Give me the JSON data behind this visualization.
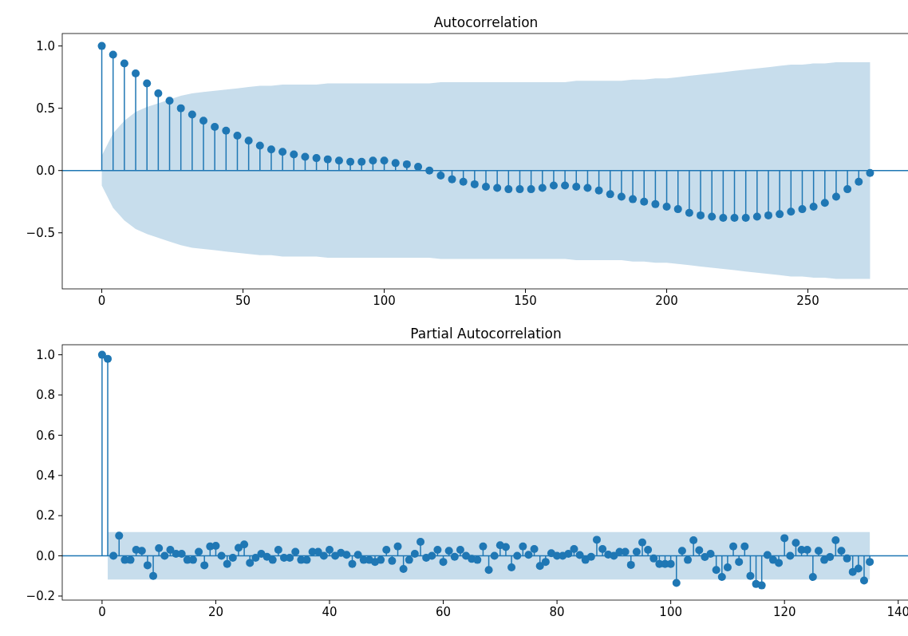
{
  "chart_data": [
    {
      "type": "lollipop",
      "title": "Autocorrelation",
      "xlim": [
        -14,
        286
      ],
      "ylim": [
        -0.95,
        1.1
      ],
      "xticks": [
        0,
        50,
        100,
        150,
        200,
        250
      ],
      "yticks": [
        {
          "value": -0.5,
          "label": "−0.5"
        },
        {
          "value": 0,
          "label": "0.0"
        },
        {
          "value": 0.5,
          "label": "0.5"
        },
        {
          "value": 1,
          "label": "1.0"
        }
      ],
      "marker": "circle",
      "ref_lines": [
        {
          "axis": "y",
          "value": 0,
          "color": "#1f77b4"
        }
      ],
      "series": [
        {
          "color": "#1f77b4",
          "x": [
            0,
            4,
            8,
            12,
            16,
            20,
            24,
            28,
            32,
            36,
            40,
            44,
            48,
            52,
            56,
            60,
            64,
            68,
            72,
            76,
            80,
            84,
            88,
            92,
            96,
            100,
            104,
            108,
            112,
            116,
            120,
            124,
            128,
            132,
            136,
            140,
            144,
            148,
            152,
            156,
            160,
            164,
            168,
            172,
            176,
            180,
            184,
            188,
            192,
            196,
            200,
            204,
            208,
            212,
            216,
            220,
            224,
            228,
            232,
            236,
            240,
            244,
            248,
            252,
            256,
            260,
            264,
            268,
            272
          ],
          "values": [
            1.0,
            0.93,
            0.86,
            0.78,
            0.7,
            0.62,
            0.56,
            0.5,
            0.45,
            0.4,
            0.35,
            0.32,
            0.28,
            0.24,
            0.2,
            0.17,
            0.15,
            0.13,
            0.11,
            0.1,
            0.09,
            0.08,
            0.07,
            0.07,
            0.08,
            0.08,
            0.06,
            0.05,
            0.03,
            0.0,
            -0.04,
            -0.07,
            -0.09,
            -0.11,
            -0.13,
            -0.14,
            -0.15,
            -0.15,
            -0.15,
            -0.14,
            -0.12,
            -0.12,
            -0.13,
            -0.14,
            -0.16,
            -0.19,
            -0.21,
            -0.23,
            -0.25,
            -0.27,
            -0.29,
            -0.31,
            -0.34,
            -0.36,
            -0.37,
            -0.38,
            -0.38,
            -0.38,
            -0.37,
            -0.36,
            -0.35,
            -0.33,
            -0.31,
            -0.29,
            -0.26,
            -0.21,
            -0.15,
            -0.09,
            -0.02
          ],
          "upper": [
            0.12,
            0.3,
            0.4,
            0.47,
            0.51,
            0.54,
            0.57,
            0.6,
            0.62,
            0.63,
            0.64,
            0.65,
            0.66,
            0.67,
            0.68,
            0.68,
            0.69,
            0.69,
            0.69,
            0.69,
            0.7,
            0.7,
            0.7,
            0.7,
            0.7,
            0.7,
            0.7,
            0.7,
            0.7,
            0.7,
            0.71,
            0.71,
            0.71,
            0.71,
            0.71,
            0.71,
            0.71,
            0.71,
            0.71,
            0.71,
            0.71,
            0.71,
            0.72,
            0.72,
            0.72,
            0.72,
            0.72,
            0.73,
            0.73,
            0.74,
            0.74,
            0.75,
            0.76,
            0.77,
            0.78,
            0.79,
            0.8,
            0.81,
            0.82,
            0.83,
            0.84,
            0.85,
            0.85,
            0.86,
            0.86,
            0.87,
            0.87,
            0.87,
            0.87
          ],
          "lower": [
            -0.12,
            -0.3,
            -0.4,
            -0.47,
            -0.51,
            -0.54,
            -0.57,
            -0.6,
            -0.62,
            -0.63,
            -0.64,
            -0.65,
            -0.66,
            -0.67,
            -0.68,
            -0.68,
            -0.69,
            -0.69,
            -0.69,
            -0.69,
            -0.7,
            -0.7,
            -0.7,
            -0.7,
            -0.7,
            -0.7,
            -0.7,
            -0.7,
            -0.7,
            -0.7,
            -0.71,
            -0.71,
            -0.71,
            -0.71,
            -0.71,
            -0.71,
            -0.71,
            -0.71,
            -0.71,
            -0.71,
            -0.71,
            -0.71,
            -0.72,
            -0.72,
            -0.72,
            -0.72,
            -0.72,
            -0.73,
            -0.73,
            -0.74,
            -0.74,
            -0.75,
            -0.76,
            -0.77,
            -0.78,
            -0.79,
            -0.8,
            -0.81,
            -0.82,
            -0.83,
            -0.84,
            -0.85,
            -0.85,
            -0.86,
            -0.86,
            -0.87,
            -0.87,
            -0.87,
            -0.87
          ]
        }
      ]
    },
    {
      "type": "lollipop",
      "title": "Partial Autocorrelation",
      "xlim": [
        -7,
        142
      ],
      "ylim": [
        -0.22,
        1.05
      ],
      "xticks": [
        0,
        20,
        40,
        60,
        80,
        100,
        120,
        140
      ],
      "yticks": [
        {
          "value": -0.2,
          "label": "−0.2"
        },
        {
          "value": 0,
          "label": "0.0"
        },
        {
          "value": 0.2,
          "label": "0.2"
        },
        {
          "value": 0.4,
          "label": "0.4"
        },
        {
          "value": 0.6,
          "label": "0.6"
        },
        {
          "value": 0.8,
          "label": "0.8"
        },
        {
          "value": 1,
          "label": "1.0"
        }
      ],
      "marker": "circle",
      "ref_lines": [
        {
          "axis": "y",
          "value": 0,
          "color": "#1f77b4"
        }
      ],
      "series": [
        {
          "color": "#1f77b4",
          "x": [
            0,
            1,
            2,
            3,
            4,
            5,
            6,
            7,
            8,
            9,
            10,
            11,
            12,
            13,
            14,
            15,
            16,
            17,
            18,
            19,
            20,
            21,
            22,
            23,
            24,
            25,
            26,
            27,
            28,
            29,
            30,
            31,
            32,
            33,
            34,
            35,
            36,
            37,
            38,
            39,
            40,
            41,
            42,
            43,
            44,
            45,
            46,
            47,
            48,
            49,
            50,
            51,
            52,
            53,
            54,
            55,
            56,
            57,
            58,
            59,
            60,
            61,
            62,
            63,
            64,
            65,
            66,
            67,
            68,
            69,
            70,
            71,
            72,
            73,
            74,
            75,
            76,
            77,
            78,
            79,
            80,
            81,
            82,
            83,
            84,
            85,
            86,
            87,
            88,
            89,
            90,
            91,
            92,
            93,
            94,
            95,
            96,
            97,
            98,
            99,
            100,
            101,
            102,
            103,
            104,
            105,
            106,
            107,
            108,
            109,
            110,
            111,
            112,
            113,
            114,
            115,
            116,
            117,
            118,
            119,
            120,
            121,
            122,
            123,
            124,
            125,
            126,
            127,
            128,
            129,
            130,
            131,
            132,
            133,
            134,
            135
          ],
          "values": [
            1.0,
            0.98,
            0.0,
            0.1,
            -0.02,
            -0.02,
            0.03,
            0.025,
            -0.047,
            -0.1,
            0.038,
            0.0,
            0.03,
            0.01,
            0.01,
            -0.02,
            -0.02,
            0.02,
            -0.047,
            0.047,
            0.05,
            0.0,
            -0.04,
            -0.01,
            0.04,
            0.057,
            -0.035,
            -0.01,
            0.01,
            -0.005,
            -0.02,
            0.03,
            -0.01,
            -0.01,
            0.02,
            -0.02,
            -0.02,
            0.02,
            0.02,
            0.0,
            0.03,
            0.0,
            0.015,
            0.005,
            -0.04,
            0.005,
            -0.02,
            -0.02,
            -0.03,
            -0.02,
            0.03,
            -0.025,
            0.047,
            -0.065,
            -0.02,
            0.01,
            0.07,
            -0.01,
            0.0,
            0.03,
            -0.03,
            0.025,
            -0.005,
            0.03,
            0.0,
            -0.015,
            -0.02,
            0.047,
            -0.07,
            0.0,
            0.053,
            0.044,
            -0.057,
            0.0,
            0.047,
            0.005,
            0.034,
            -0.05,
            -0.03,
            0.013,
            0.0,
            0.0,
            0.01,
            0.034,
            0.004,
            -0.02,
            -0.005,
            0.08,
            0.034,
            0.006,
            0.0,
            0.02,
            0.02,
            -0.045,
            0.02,
            0.067,
            0.03,
            -0.013,
            -0.04,
            -0.04,
            -0.04,
            -0.135,
            0.025,
            -0.02,
            0.078,
            0.028,
            -0.006,
            0.01,
            -0.07,
            -0.105,
            -0.057,
            0.047,
            -0.03,
            0.047,
            -0.1,
            -0.14,
            -0.147,
            0.004,
            -0.02,
            -0.035,
            0.088,
            0.0,
            0.065,
            0.03,
            0.03,
            -0.105,
            0.025,
            -0.02,
            -0.006,
            0.078,
            0.025,
            -0.013,
            -0.08,
            -0.063,
            -0.123,
            -0.03
          ],
          "upper": [
            null,
            0.118,
            0.118,
            0.118,
            0.118,
            0.118,
            0.118,
            0.118,
            0.118,
            0.118,
            0.118,
            0.118,
            0.118,
            0.118,
            0.118,
            0.118,
            0.118,
            0.118,
            0.118,
            0.118,
            0.118,
            0.118,
            0.118,
            0.118,
            0.118,
            0.118,
            0.118,
            0.118,
            0.118,
            0.118,
            0.118,
            0.118,
            0.118,
            0.118,
            0.118,
            0.118,
            0.118,
            0.118,
            0.118,
            0.118,
            0.118,
            0.118,
            0.118,
            0.118,
            0.118,
            0.118,
            0.118,
            0.118,
            0.118,
            0.118,
            0.118,
            0.118,
            0.118,
            0.118,
            0.118,
            0.118,
            0.118,
            0.118,
            0.118,
            0.118,
            0.118,
            0.118,
            0.118,
            0.118,
            0.118,
            0.118,
            0.118,
            0.118,
            0.118,
            0.118,
            0.118,
            0.118,
            0.118,
            0.118,
            0.118,
            0.118,
            0.118,
            0.118,
            0.118,
            0.118,
            0.118,
            0.118,
            0.118,
            0.118,
            0.118,
            0.118,
            0.118,
            0.118,
            0.118,
            0.118,
            0.118,
            0.118,
            0.118,
            0.118,
            0.118,
            0.118,
            0.118,
            0.118,
            0.118,
            0.118,
            0.118,
            0.118,
            0.118,
            0.118,
            0.118,
            0.118,
            0.118,
            0.118,
            0.118,
            0.118,
            0.118,
            0.118,
            0.118,
            0.118,
            0.118,
            0.118,
            0.118,
            0.118,
            0.118,
            0.118,
            0.118,
            0.118,
            0.118,
            0.118,
            0.118,
            0.118,
            0.118,
            0.118,
            0.118,
            0.118,
            0.118,
            0.118,
            0.118,
            0.118,
            0.118,
            0.118
          ],
          "lower": [
            null,
            -0.118,
            -0.118,
            -0.118,
            -0.118,
            -0.118,
            -0.118,
            -0.118,
            -0.118,
            -0.118,
            -0.118,
            -0.118,
            -0.118,
            -0.118,
            -0.118,
            -0.118,
            -0.118,
            -0.118,
            -0.118,
            -0.118,
            -0.118,
            -0.118,
            -0.118,
            -0.118,
            -0.118,
            -0.118,
            -0.118,
            -0.118,
            -0.118,
            -0.118,
            -0.118,
            -0.118,
            -0.118,
            -0.118,
            -0.118,
            -0.118,
            -0.118,
            -0.118,
            -0.118,
            -0.118,
            -0.118,
            -0.118,
            -0.118,
            -0.118,
            -0.118,
            -0.118,
            -0.118,
            -0.118,
            -0.118,
            -0.118,
            -0.118,
            -0.118,
            -0.118,
            -0.118,
            -0.118,
            -0.118,
            -0.118,
            -0.118,
            -0.118,
            -0.118,
            -0.118,
            -0.118,
            -0.118,
            -0.118,
            -0.118,
            -0.118,
            -0.118,
            -0.118,
            -0.118,
            -0.118,
            -0.118,
            -0.118,
            -0.118,
            -0.118,
            -0.118,
            -0.118,
            -0.118,
            -0.118,
            -0.118,
            -0.118,
            -0.118,
            -0.118,
            -0.118,
            -0.118,
            -0.118,
            -0.118,
            -0.118,
            -0.118,
            -0.118,
            -0.118,
            -0.118,
            -0.118,
            -0.118,
            -0.118,
            -0.118,
            -0.118,
            -0.118,
            -0.118,
            -0.118,
            -0.118,
            -0.118,
            -0.118,
            -0.118,
            -0.118,
            -0.118,
            -0.118,
            -0.118,
            -0.118,
            -0.118,
            -0.118,
            -0.118,
            -0.118,
            -0.118,
            -0.118,
            -0.118,
            -0.118,
            -0.118,
            -0.118,
            -0.118,
            -0.118,
            -0.118,
            -0.118,
            -0.118,
            -0.118,
            -0.118,
            -0.118,
            -0.118,
            -0.118,
            -0.118,
            -0.118,
            -0.118,
            -0.118,
            -0.118,
            -0.118,
            -0.118,
            -0.118
          ]
        }
      ]
    }
  ]
}
